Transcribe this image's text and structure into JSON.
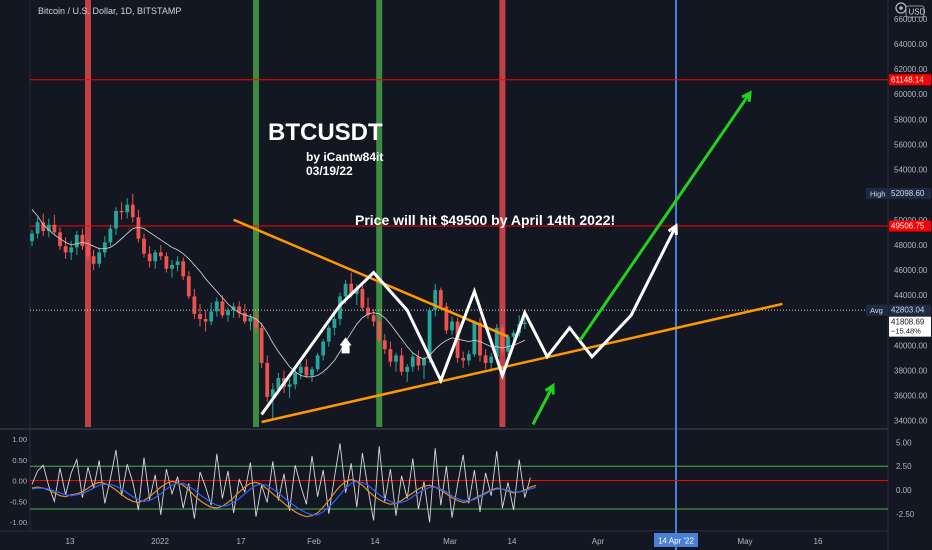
{
  "header": {
    "symbol_title": "Bitcoin / U.S. Dollar, 1D, BITSTAMP",
    "currency": "USD",
    "corner_icon": "settings-icon"
  },
  "annotations": {
    "title": "BTCUSDT",
    "byline": "by iCantw84it",
    "date": "03/19/22",
    "prediction": "Price will hit $49500 by April 14th 2022!"
  },
  "colors": {
    "background": "#131722",
    "candle_up": "#26a69a",
    "candle_down": "#ef5350",
    "red_band": "#e0484e",
    "green_band": "#43a047",
    "blue_line": "#4a7fd6",
    "resistance": "#ff0000",
    "trendline": "#ff9800",
    "path": "#ffffff",
    "arrow": "#22d11c",
    "osc_fast": "#e08e2a",
    "osc_slow": "#2962ff"
  },
  "chart_data": [
    {
      "type": "candlestick",
      "title": "Bitcoin / U.S. Dollar, 1D, BITSTAMP",
      "y_axis": {
        "unit": "USD",
        "scale": "linear",
        "range": [
          33500,
          67500
        ],
        "tick_labels": [
          "34000.00",
          "36000.00",
          "38000.00",
          "40000.00",
          "42000.00",
          "44000.00",
          "46000.00",
          "48000.00",
          "50000.00",
          "52000.00",
          "54000.00",
          "56000.00",
          "58000.00",
          "60000.00",
          "62000.00",
          "64000.00",
          "66000.00"
        ]
      },
      "x_axis": {
        "tick_labels": [
          "13",
          "2022",
          "17",
          "Feb",
          "14",
          "Mar",
          "14",
          "Apr",
          "14 Apr '22",
          "May",
          "16"
        ],
        "highlighted": "14 Apr '22"
      },
      "price_labels": [
        {
          "label": "61148.14",
          "value": 61148.14,
          "kind": "resistance"
        },
        {
          "label": "52098.60",
          "value": 52098.6,
          "kind": "high",
          "tag": "High"
        },
        {
          "label": "49506.75",
          "value": 49506.75,
          "kind": "target"
        },
        {
          "label": "42803.04",
          "value": 42803.04,
          "kind": "avg",
          "tag": "Avg"
        },
        {
          "label": "41808.69",
          "sub": "−15.48%",
          "value": 41808.69,
          "kind": "last"
        }
      ],
      "horizontal_lines": [
        {
          "value": 61148.14,
          "color": "#ff0000"
        },
        {
          "value": 49506.75,
          "color": "#ff0000"
        },
        {
          "value": 42803.04,
          "style": "dotted",
          "color": "#ffffff"
        }
      ],
      "candles": [
        [
          48300,
          49200,
          47900,
          48900
        ],
        [
          48900,
          50200,
          48500,
          49800
        ],
        [
          49800,
          50500,
          48700,
          49100
        ],
        [
          49100,
          50100,
          48600,
          49600
        ],
        [
          49600,
          50400,
          48900,
          49000
        ],
        [
          49000,
          49400,
          47600,
          47900
        ],
        [
          47900,
          48600,
          46900,
          47400
        ],
        [
          47400,
          48300,
          46800,
          47800
        ],
        [
          47800,
          49100,
          47200,
          48800
        ],
        [
          48800,
          49300,
          47600,
          47900
        ],
        [
          47900,
          48400,
          46700,
          47100
        ],
        [
          47100,
          47600,
          46000,
          46500
        ],
        [
          46500,
          47800,
          46200,
          47400
        ],
        [
          47400,
          48700,
          47000,
          48200
        ],
        [
          48200,
          49600,
          47900,
          49300
        ],
        [
          49300,
          51000,
          48800,
          50700
        ],
        [
          50700,
          51400,
          50000,
          50600
        ],
        [
          50600,
          51700,
          50100,
          51200
        ],
        [
          51200,
          52090,
          49800,
          50200
        ],
        [
          50200,
          50800,
          48200,
          48500
        ],
        [
          48500,
          48900,
          47000,
          47300
        ],
        [
          47300,
          47900,
          46200,
          46700
        ],
        [
          46700,
          47600,
          46100,
          47400
        ],
        [
          47400,
          48000,
          46800,
          47100
        ],
        [
          47100,
          47400,
          45800,
          46100
        ],
        [
          46100,
          46800,
          45400,
          46400
        ],
        [
          46400,
          47100,
          45900,
          46700
        ],
        [
          46700,
          47000,
          45200,
          45500
        ],
        [
          45500,
          45900,
          43700,
          43900
        ],
        [
          43900,
          44500,
          42100,
          42500
        ],
        [
          42500,
          43300,
          41500,
          42100
        ],
        [
          42100,
          42800,
          41100,
          41900
        ],
        [
          41900,
          43400,
          41600,
          42700
        ],
        [
          42700,
          43800,
          42300,
          43500
        ],
        [
          43500,
          44000,
          42200,
          42400
        ],
        [
          42400,
          43000,
          41900,
          42800
        ],
        [
          42800,
          43400,
          42200,
          43100
        ],
        [
          43100,
          43500,
          42200,
          42600
        ],
        [
          42600,
          43300,
          41700,
          41900
        ],
        [
          41900,
          42500,
          41200,
          42200
        ],
        [
          42200,
          42800,
          41000,
          41400
        ],
        [
          41400,
          41800,
          38200,
          38600
        ],
        [
          38600,
          39200,
          35500,
          35900
        ],
        [
          35900,
          37000,
          34100,
          36500
        ],
        [
          36500,
          37800,
          36100,
          37400
        ],
        [
          37400,
          38000,
          36200,
          36700
        ],
        [
          36700,
          37300,
          35800,
          36900
        ],
        [
          36900,
          38100,
          36500,
          37800
        ],
        [
          37800,
          38600,
          37300,
          38300
        ],
        [
          38300,
          38900,
          37400,
          37600
        ],
        [
          37600,
          38300,
          37100,
          38100
        ],
        [
          38100,
          39400,
          37900,
          39200
        ],
        [
          39200,
          40500,
          38800,
          40300
        ],
        [
          40300,
          41600,
          39900,
          41400
        ],
        [
          41400,
          42400,
          40800,
          42100
        ],
        [
          42100,
          44200,
          41600,
          43900
        ],
        [
          43900,
          45200,
          43300,
          44900
        ],
        [
          44900,
          45800,
          43800,
          44100
        ],
        [
          44100,
          44900,
          43200,
          44500
        ],
        [
          44500,
          44800,
          42700,
          43000
        ],
        [
          43000,
          43800,
          42100,
          42400
        ],
        [
          42400,
          42900,
          41500,
          41900
        ],
        [
          41900,
          42300,
          40100,
          40400
        ],
        [
          40400,
          40900,
          39300,
          39700
        ],
        [
          39700,
          40300,
          38300,
          38700
        ],
        [
          38700,
          39400,
          37900,
          39200
        ],
        [
          39200,
          39800,
          37600,
          37900
        ],
        [
          37900,
          38500,
          37100,
          38300
        ],
        [
          38300,
          39400,
          37900,
          39100
        ],
        [
          39100,
          39600,
          38000,
          38400
        ],
        [
          38400,
          39100,
          37300,
          38900
        ],
        [
          38900,
          43000,
          38600,
          42800
        ],
        [
          42800,
          44900,
          42300,
          44400
        ],
        [
          44400,
          44600,
          42900,
          43100
        ],
        [
          43100,
          43400,
          40900,
          41200
        ],
        [
          41200,
          42300,
          40800,
          41900
        ],
        [
          41900,
          42200,
          38600,
          39000
        ],
        [
          39000,
          39500,
          38200,
          38800
        ],
        [
          38800,
          39600,
          38400,
          39300
        ],
        [
          39300,
          42000,
          39100,
          41800
        ],
        [
          41800,
          42200,
          38700,
          39200
        ],
        [
          39200,
          39700,
          38100,
          38600
        ],
        [
          38600,
          39400,
          37900,
          39100
        ],
        [
          39100,
          41700,
          38900,
          41400
        ],
        [
          41400,
          41700,
          39200,
          39500
        ],
        [
          39500,
          40900,
          39200,
          40700
        ],
        [
          40700,
          41200,
          40100,
          41000
        ],
        [
          41000,
          42400,
          40700,
          41700
        ],
        [
          41700,
          42200,
          41300,
          41808.69
        ]
      ],
      "moving_average": [
        50800,
        50300,
        49600,
        49200,
        48800,
        48500,
        48200,
        48000,
        48100,
        48200,
        48100,
        47900,
        47700,
        47700,
        47800,
        48100,
        48500,
        48900,
        49300,
        49400,
        49300,
        49000,
        48700,
        48400,
        48100,
        47800,
        47600,
        47300,
        46900,
        46400,
        45900,
        45300,
        44800,
        44300,
        43800,
        43300,
        42900,
        42600,
        42400,
        42300,
        42100,
        41700,
        41000,
        40200,
        39500,
        38900,
        38300,
        37900,
        37600,
        37500,
        37500,
        37600,
        37900,
        38300,
        38800,
        39500,
        40300,
        41000,
        41700,
        42200,
        42500,
        42600,
        42500,
        42200,
        41700,
        41100,
        40500,
        39900,
        39400,
        39100,
        38900,
        39200,
        39700,
        40100,
        40400,
        40600,
        40500,
        40400,
        40300,
        40400,
        40300,
        40100,
        39900,
        39900,
        39800,
        39900,
        40000,
        40200,
        40400
      ],
      "trendlines": [
        {
          "name": "resistance",
          "from": [
            36,
            50000
          ],
          "to": [
            85,
            40700
          ]
        },
        {
          "name": "support",
          "from": [
            41,
            33900
          ],
          "to": [
            134,
            43300
          ]
        }
      ],
      "projected_path": [
        [
          41,
          34500
        ],
        [
          55,
          43200
        ],
        [
          61,
          45800
        ],
        [
          67,
          42800
        ],
        [
          73,
          37200
        ],
        [
          79,
          44300
        ],
        [
          84,
          37600
        ],
        [
          88,
          42600
        ],
        [
          92,
          39100
        ],
        [
          96,
          41400
        ],
        [
          100,
          39100
        ],
        [
          107,
          42400
        ],
        [
          115,
          49506.75
        ]
      ],
      "vertical_bands": [
        {
          "color": "red",
          "index": 10
        },
        {
          "color": "green",
          "index": 40
        },
        {
          "color": "green",
          "index": 62
        },
        {
          "color": "red",
          "index": 84
        },
        {
          "color": "blue",
          "index": 115,
          "label": "14 Apr '22"
        }
      ]
    },
    {
      "type": "line",
      "panel": "oscillator",
      "y_axis_left": {
        "tick_labels": [
          "1.00",
          "0.50",
          "0.00",
          "-0.50",
          "-1.00"
        ],
        "range": [
          -1.0,
          1.0
        ]
      },
      "y_axis_right": {
        "tick_labels": [
          "5.00",
          "2.50",
          "0.00",
          "-2.50"
        ],
        "range": [
          -4.2,
          6.2
        ]
      },
      "reference_lines": [
        {
          "value": 2.5,
          "color": "#4caf50"
        },
        {
          "value": 1.0,
          "color": "#ff0000"
        },
        {
          "value": -2.0,
          "color": "#4caf50"
        }
      ],
      "series": [
        {
          "values": [
            0.6,
            2.0,
            2.6,
            0.4,
            -1.2,
            2.3,
            -0.5,
            1.8,
            3.2,
            -0.8,
            2.4,
            0.2,
            3.1,
            -1.4,
            1.2,
            4.2,
            -0.6,
            2.7,
            0.8,
            -2.1,
            3.4,
            -1.0,
            1.6,
            -2.6,
            2.2,
            -0.4,
            1.4,
            -1.9,
            0.7,
            -3.0,
            1.9,
            0.3,
            -1.6,
            3.8,
            -0.9,
            2.0,
            -2.4,
            1.1,
            -0.2,
            2.9,
            -2.8,
            0.5,
            -1.3,
            3.0,
            -1.1,
            1.7,
            -2.2,
            2.6,
            0.4,
            -1.5,
            3.6,
            -0.7,
            2.1,
            -2.5,
            1.3,
            4.9,
            -0.3,
            2.8,
            -1.8,
            3.9,
            0.1,
            -3.2,
            4.6,
            -1.2,
            2.2,
            -2.7,
            1.5,
            -0.9,
            3.3,
            -2.0,
            0.9,
            -3.4,
            4.4,
            -1.6,
            2.5,
            -2.9,
            0.6,
            3.7,
            -1.4,
            2.1,
            -2.3,
            1.8,
            -0.6,
            4.1,
            -1.9,
            0.8,
            -2.1,
            3.2,
            -0.8,
            1.3
          ]
        },
        {
          "values": [
            0.2,
            0.3,
            0.2,
            0.0,
            -0.3,
            -0.6,
            -0.7,
            -0.5,
            -0.4,
            -0.2,
            0.2,
            0.6,
            0.8,
            0.7,
            0.4,
            0.0,
            -0.5,
            -0.9,
            -1.2,
            -1.3,
            -1.1,
            -0.7,
            -0.2,
            0.3,
            0.7,
            0.9,
            0.8,
            0.5,
            0.0,
            -0.6,
            -1.1,
            -1.5,
            -1.8,
            -1.9,
            -1.7,
            -1.3,
            -0.8,
            -0.2,
            0.3,
            0.7,
            0.8,
            0.6,
            0.1,
            -0.4,
            -0.9,
            -1.4,
            -1.9,
            -2.3,
            -2.6,
            -2.8,
            -2.7,
            -2.4,
            -1.8,
            -1.1,
            -0.3,
            0.4,
            0.9,
            1.1,
            0.9,
            0.5,
            -0.1,
            -0.6,
            -1.0,
            -1.3,
            -1.5,
            -1.4,
            -1.1,
            -0.7,
            -0.3,
            0.1,
            0.4,
            0.5,
            0.3,
            0.0,
            -0.4,
            -0.8,
            -1.1,
            -1.3,
            -1.2,
            -0.9,
            -0.6,
            -0.3,
            0.0,
            0.2,
            0.1,
            -0.1,
            -0.3,
            -0.2,
            0.0,
            0.3,
            0.5
          ]
        },
        {
          "values": [
            0.1,
            0.2,
            0.2,
            0.1,
            -0.1,
            -0.3,
            -0.5,
            -0.6,
            -0.5,
            -0.4,
            -0.1,
            0.2,
            0.5,
            0.6,
            0.6,
            0.4,
            0.1,
            -0.3,
            -0.7,
            -1.0,
            -1.2,
            -1.1,
            -0.8,
            -0.4,
            0.1,
            0.5,
            0.7,
            0.7,
            0.4,
            0.0,
            -0.5,
            -0.9,
            -1.3,
            -1.6,
            -1.7,
            -1.6,
            -1.3,
            -0.9,
            -0.4,
            0.1,
            0.5,
            0.6,
            0.5,
            0.1,
            -0.3,
            -0.8,
            -1.3,
            -1.7,
            -2.1,
            -2.4,
            -2.6,
            -2.6,
            -2.3,
            -1.8,
            -1.2,
            -0.5,
            0.2,
            0.7,
            0.9,
            0.8,
            0.5,
            0.0,
            -0.5,
            -0.9,
            -1.2,
            -1.4,
            -1.3,
            -1.1,
            -0.7,
            -0.3,
            0.0,
            0.3,
            0.3,
            0.1,
            -0.2,
            -0.6,
            -0.9,
            -1.1,
            -1.1,
            -1.0,
            -0.7,
            -0.4,
            -0.1,
            0.1,
            0.1,
            0.0,
            -0.2,
            -0.2,
            -0.1,
            0.1,
            0.3
          ]
        }
      ]
    }
  ]
}
